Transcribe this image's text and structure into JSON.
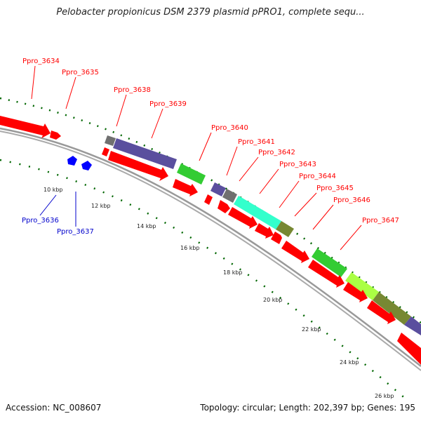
{
  "title": "Pelobacter propionicus DSM 2379 plasmid pPRO1, complete sequ...",
  "accession": "Accession: NC_008607",
  "topology": "Topology: circular; Length: 202,397 bp; Genes: 195",
  "colors": {
    "forward": "#ff0000",
    "reverse": "#0000cc",
    "backbone": "#999999",
    "ticks": "#006600",
    "purple": "#5a4f9e",
    "gray": "#707070",
    "green": "#33cc33",
    "aqua": "#33ffcc",
    "olive": "#778833",
    "lime": "#aaff44"
  },
  "tick_labels": [
    "10 kbp",
    "12 kbp",
    "14 kbp",
    "16 kbp",
    "18 kbp",
    "20 kbp",
    "22 kbp",
    "24 kbp",
    "26 kbp"
  ],
  "gene_labels": [
    {
      "text": "Ppro_3634",
      "strand": "forward"
    },
    {
      "text": "Ppro_3635",
      "strand": "forward"
    },
    {
      "text": "Ppro_3638",
      "strand": "forward"
    },
    {
      "text": "Ppro_3639",
      "strand": "forward"
    },
    {
      "text": "Ppro_3640",
      "strand": "forward"
    },
    {
      "text": "Ppro_3641",
      "strand": "forward"
    },
    {
      "text": "Ppro_3642",
      "strand": "forward"
    },
    {
      "text": "Ppro_3643",
      "strand": "forward"
    },
    {
      "text": "Ppro_3644",
      "strand": "forward"
    },
    {
      "text": "Ppro_3645",
      "strand": "forward"
    },
    {
      "text": "Ppro_3646",
      "strand": "forward"
    },
    {
      "text": "Ppro_3647",
      "strand": "forward"
    },
    {
      "text": "Ppro_3636",
      "strand": "reverse"
    },
    {
      "text": "Ppro_3637",
      "strand": "reverse"
    }
  ]
}
